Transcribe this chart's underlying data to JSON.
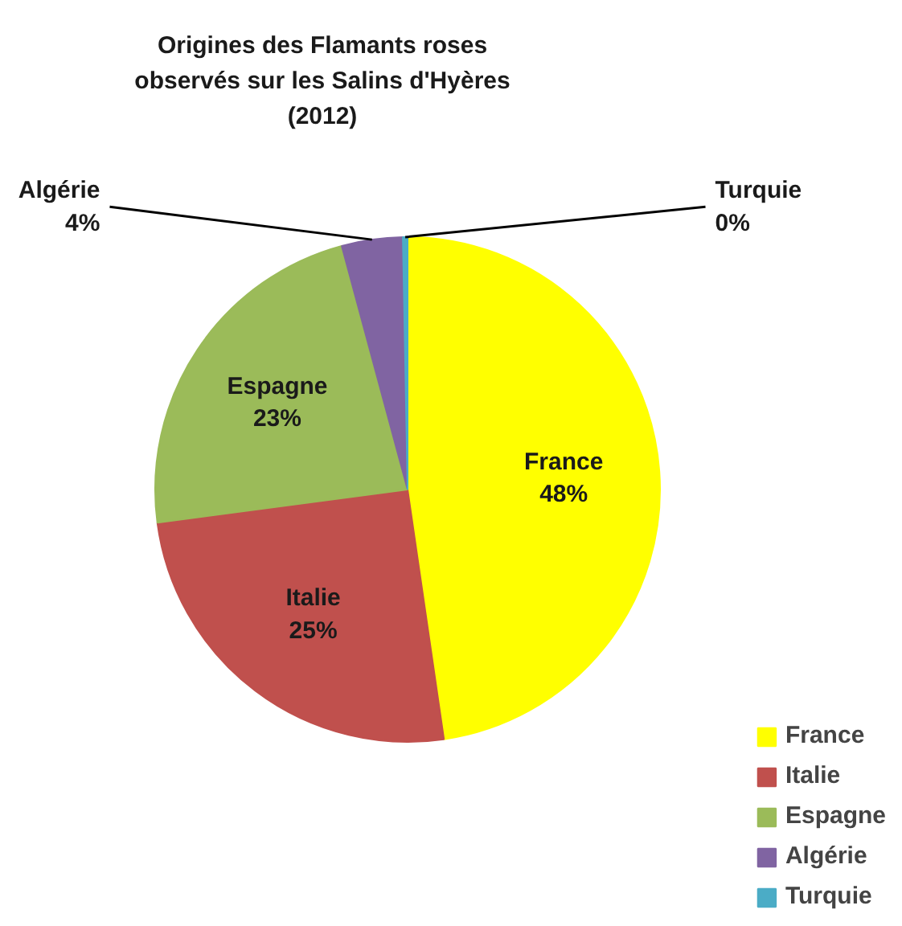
{
  "chart_data": {
    "type": "pie",
    "title": "Origines des Flamants roses\nobservés sur les Salins d'Hyères\n(2012)",
    "categories": [
      "France",
      "Italie",
      "Espagne",
      "Algérie",
      "Turquie"
    ],
    "values": [
      47.7,
      25.2,
      22.9,
      3.9,
      0.3
    ],
    "value_labels": [
      "48%",
      "25%",
      "23%",
      "4%",
      "0%"
    ],
    "colors": [
      "#ffff00",
      "#c0504d",
      "#9bbb59",
      "#8064a2",
      "#4bacc6"
    ],
    "legend": "bottom right"
  }
}
